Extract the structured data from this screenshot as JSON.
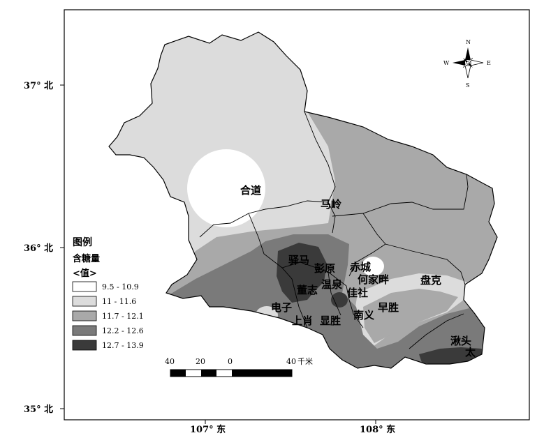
{
  "map": {
    "latitude_labels": [
      "37° 北",
      "36° 北",
      "35° 北"
    ],
    "longitude_labels": [
      "107° 东",
      "108° 东"
    ],
    "places": [
      {
        "id": "hedao",
        "name": "合道"
      },
      {
        "id": "maling",
        "name": "马岭"
      },
      {
        "id": "yima",
        "name": "驿马"
      },
      {
        "id": "pengyuan",
        "name": "彭原"
      },
      {
        "id": "chicheng",
        "name": "赤城"
      },
      {
        "id": "hejiapan",
        "name": "何家畔"
      },
      {
        "id": "panke",
        "name": "盘克"
      },
      {
        "id": "dongzhi",
        "name": "董志"
      },
      {
        "id": "wenquan",
        "name": "温泉"
      },
      {
        "id": "peishe",
        "name": "佳社"
      },
      {
        "id": "dianzi",
        "name": "电子"
      },
      {
        "id": "zaosheng",
        "name": "早胜"
      },
      {
        "id": "shangxiao",
        "name": "上肖"
      },
      {
        "id": "xiaosheng",
        "name": "显胜"
      },
      {
        "id": "nanyi",
        "name": "南义"
      },
      {
        "id": "qiutou",
        "name": "湫头"
      },
      {
        "id": "tai",
        "name": "太"
      }
    ]
  },
  "legend": {
    "title": "图例",
    "subtitle": "含糖量",
    "value_label": "<值>",
    "classes": [
      {
        "label": "9.5 - 10.9",
        "color": "#ffffff"
      },
      {
        "label": "11 - 11.6",
        "color": "#dcdcdc"
      },
      {
        "label": "11.7 - 12.1",
        "color": "#a9a9a9"
      },
      {
        "label": "12.2 - 12.6",
        "color": "#7a7a7a"
      },
      {
        "label": "12.7 - 13.9",
        "color": "#3a3a3a"
      }
    ]
  },
  "scale_bar": {
    "ticks": [
      "40",
      "20",
      "0",
      "40"
    ],
    "unit": "千米"
  },
  "compass": {
    "n": "N",
    "s": "S",
    "e": "E",
    "w": "W"
  }
}
